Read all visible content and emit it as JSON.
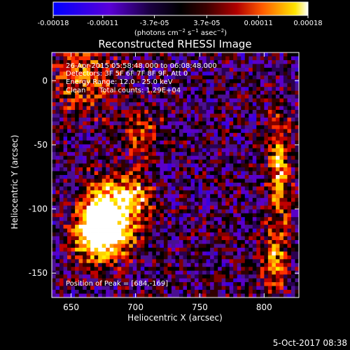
{
  "colorbar": {
    "tick_labels": [
      "-0.00018",
      "-0.00011",
      "-3.7e-05",
      "3.7e-05",
      "0.00011",
      "0.00018"
    ],
    "tick_values": [
      -0.00018,
      -0.00011,
      -3.7e-05,
      3.7e-05,
      0.00011,
      0.00018
    ],
    "range": [
      -0.00018,
      0.00018
    ],
    "unit_prefix": "(photons cm",
    "unit_exp1": "−2",
    "unit_mid": " s",
    "unit_exp2": "−1",
    "unit_mid2": " asec",
    "unit_exp3": "−2",
    "unit_suffix": ")",
    "colors": [
      "#0000ff",
      "#6a00c8",
      "#1a0030",
      "#000000",
      "#3a0000",
      "#b00000",
      "#ff5a00",
      "#ffb000",
      "#ffe600",
      "#ffffff"
    ]
  },
  "chart_data": {
    "type": "heatmap",
    "title": "Reconstructed RHESSI Image",
    "xlabel": "Heliocentric X (arcsec)",
    "ylabel": "Heliocentric Y (arcsec)",
    "xlim": [
      635,
      827
    ],
    "ylim": [
      -169,
      22
    ],
    "x_ticks": [
      650,
      700,
      750,
      800
    ],
    "y_ticks": [
      0,
      -50,
      -100,
      -150
    ],
    "annotations": [
      "26-Apr-2015 05:58:48.000 to 06:08:48.000",
      "Detectors: 3F 5F 6F 7F 8F 9F, Att 0",
      "Energy Range: 12.0 - 25.0 keV",
      "Clean",
      "Total counts: 1.29E+04"
    ],
    "peak_label": "Position of Peak = [684,-169]",
    "peak": [
      684,
      -169
    ],
    "sources": [
      {
        "x": 680,
        "y": -105,
        "sx": 14,
        "sy": 18,
        "amp": 1.0
      },
      {
        "x": 670,
        "y": -120,
        "sx": 12,
        "sy": 14,
        "amp": 0.8
      },
      {
        "x": 700,
        "y": -90,
        "sx": 8,
        "sy": 10,
        "amp": 0.45
      },
      {
        "x": 812,
        "y": -70,
        "sx": 6,
        "sy": 30,
        "amp": 0.55
      },
      {
        "x": 808,
        "y": -140,
        "sx": 7,
        "sy": 18,
        "amp": 0.45
      },
      {
        "x": 660,
        "y": 0,
        "sx": 16,
        "sy": 18,
        "amp": 0.4
      },
      {
        "x": 705,
        "y": -40,
        "sx": 10,
        "sy": 12,
        "amp": 0.35
      }
    ]
  },
  "footer": {
    "date_stamp": "5-Oct-2017 08:38"
  }
}
